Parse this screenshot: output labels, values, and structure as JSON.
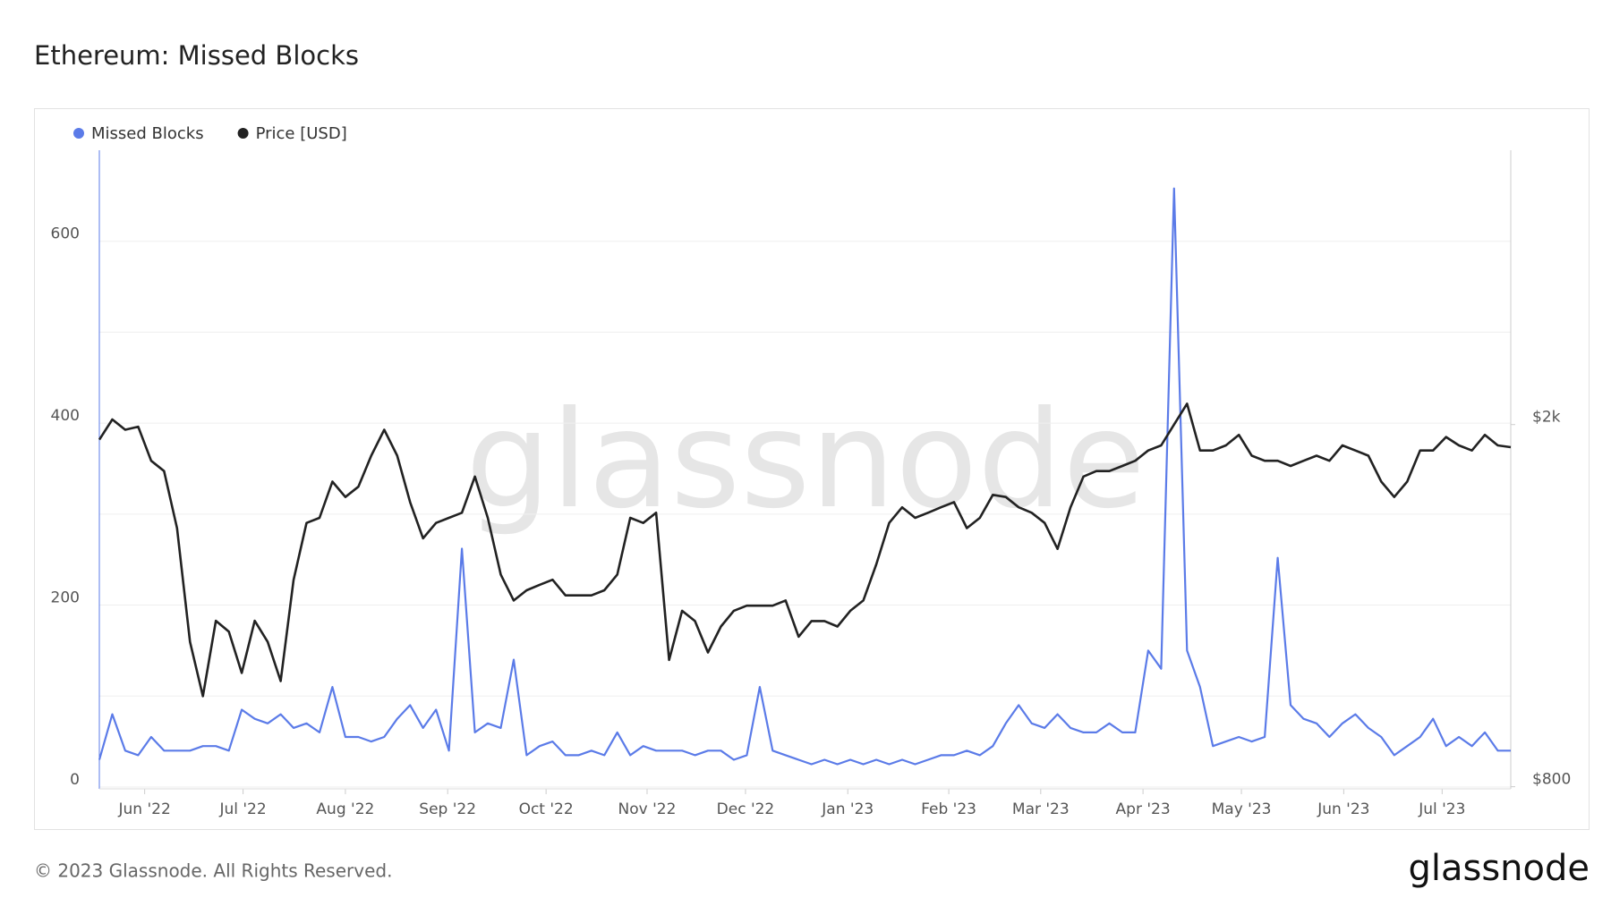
{
  "chart_data": {
    "type": "line",
    "title": "Ethereum: Missed Blocks",
    "watermark": "glassnode",
    "copyright": "© 2023 Glassnode. All Rights Reserved.",
    "logo": "glassnode",
    "xlim": [
      0,
      109
    ],
    "xticks": [
      {
        "value": 3.5,
        "label": "Jun '22"
      },
      {
        "value": 11.1,
        "label": "Jul '22"
      },
      {
        "value": 19.0,
        "label": "Aug '22"
      },
      {
        "value": 26.9,
        "label": "Sep '22"
      },
      {
        "value": 34.5,
        "label": "Oct '22"
      },
      {
        "value": 42.3,
        "label": "Nov '22"
      },
      {
        "value": 49.9,
        "label": "Dec '22"
      },
      {
        "value": 57.8,
        "label": "Jan '23"
      },
      {
        "value": 65.6,
        "label": "Feb '23"
      },
      {
        "value": 72.7,
        "label": "Mar '23"
      },
      {
        "value": 80.6,
        "label": "Apr '23"
      },
      {
        "value": 88.2,
        "label": "May '23"
      },
      {
        "value": 96.1,
        "label": "Jun '23"
      },
      {
        "value": 103.7,
        "label": "Jul '23"
      }
    ],
    "ylim": [
      -2,
      700
    ],
    "yticks": [
      0,
      200,
      400,
      600
    ],
    "minor_yticks": [
      100,
      300,
      500
    ],
    "y2lim": [
      793,
      2909
    ],
    "y2ticks": [
      {
        "value": 800,
        "label": "$800"
      },
      {
        "value": 2000,
        "label": "$2k"
      }
    ],
    "grid": true,
    "series": [
      {
        "name": "Missed Blocks",
        "color": "#5b7be8",
        "axis": "y",
        "values": [
          30,
          80,
          40,
          35,
          55,
          40,
          40,
          40,
          45,
          45,
          40,
          85,
          75,
          70,
          80,
          65,
          70,
          60,
          110,
          55,
          55,
          50,
          55,
          75,
          90,
          65,
          85,
          40,
          262,
          60,
          70,
          65,
          140,
          35,
          45,
          50,
          35,
          35,
          40,
          35,
          60,
          35,
          45,
          40,
          40,
          40,
          35,
          40,
          40,
          30,
          35,
          110,
          40,
          35,
          30,
          25,
          30,
          25,
          30,
          25,
          30,
          25,
          30,
          25,
          30,
          35,
          35,
          40,
          35,
          45,
          70,
          90,
          70,
          65,
          80,
          65,
          60,
          60,
          70,
          60,
          60,
          150,
          130,
          658,
          150,
          110,
          45,
          50,
          55,
          50,
          55,
          252,
          90,
          75,
          70,
          55,
          70,
          80,
          65,
          55,
          35,
          45,
          55,
          75,
          45,
          55,
          45,
          60,
          40,
          40
        ]
      },
      {
        "name": "Price [USD]",
        "color": "#222222",
        "axis": "y2",
        "values": [
          1950,
          2017,
          1983,
          1993,
          1880,
          1846,
          1657,
          1280,
          1100,
          1350,
          1314,
          1177,
          1350,
          1280,
          1150,
          1485,
          1674,
          1691,
          1811,
          1760,
          1794,
          1897,
          1983,
          1897,
          1743,
          1623,
          1674,
          1691,
          1708,
          1828,
          1691,
          1503,
          1417,
          1451,
          1469,
          1486,
          1434,
          1434,
          1434,
          1451,
          1503,
          1691,
          1674,
          1708,
          1220,
          1383,
          1349,
          1245,
          1331,
          1383,
          1400,
          1400,
          1400,
          1417,
          1297,
          1349,
          1349,
          1331,
          1383,
          1417,
          1537,
          1674,
          1726,
          1691,
          1708,
          1726,
          1743,
          1657,
          1691,
          1767,
          1760,
          1726,
          1708,
          1674,
          1588,
          1726,
          1828,
          1846,
          1846,
          1863,
          1880,
          1914,
          1931,
          2000,
          2069,
          1914,
          1914,
          1931,
          1966,
          1897,
          1880,
          1880,
          1863,
          1880,
          1897,
          1880,
          1931,
          1914,
          1897,
          1811,
          1760,
          1811,
          1914,
          1914,
          1959,
          1931,
          1914,
          1966,
          1931,
          1925
        ]
      }
    ]
  }
}
